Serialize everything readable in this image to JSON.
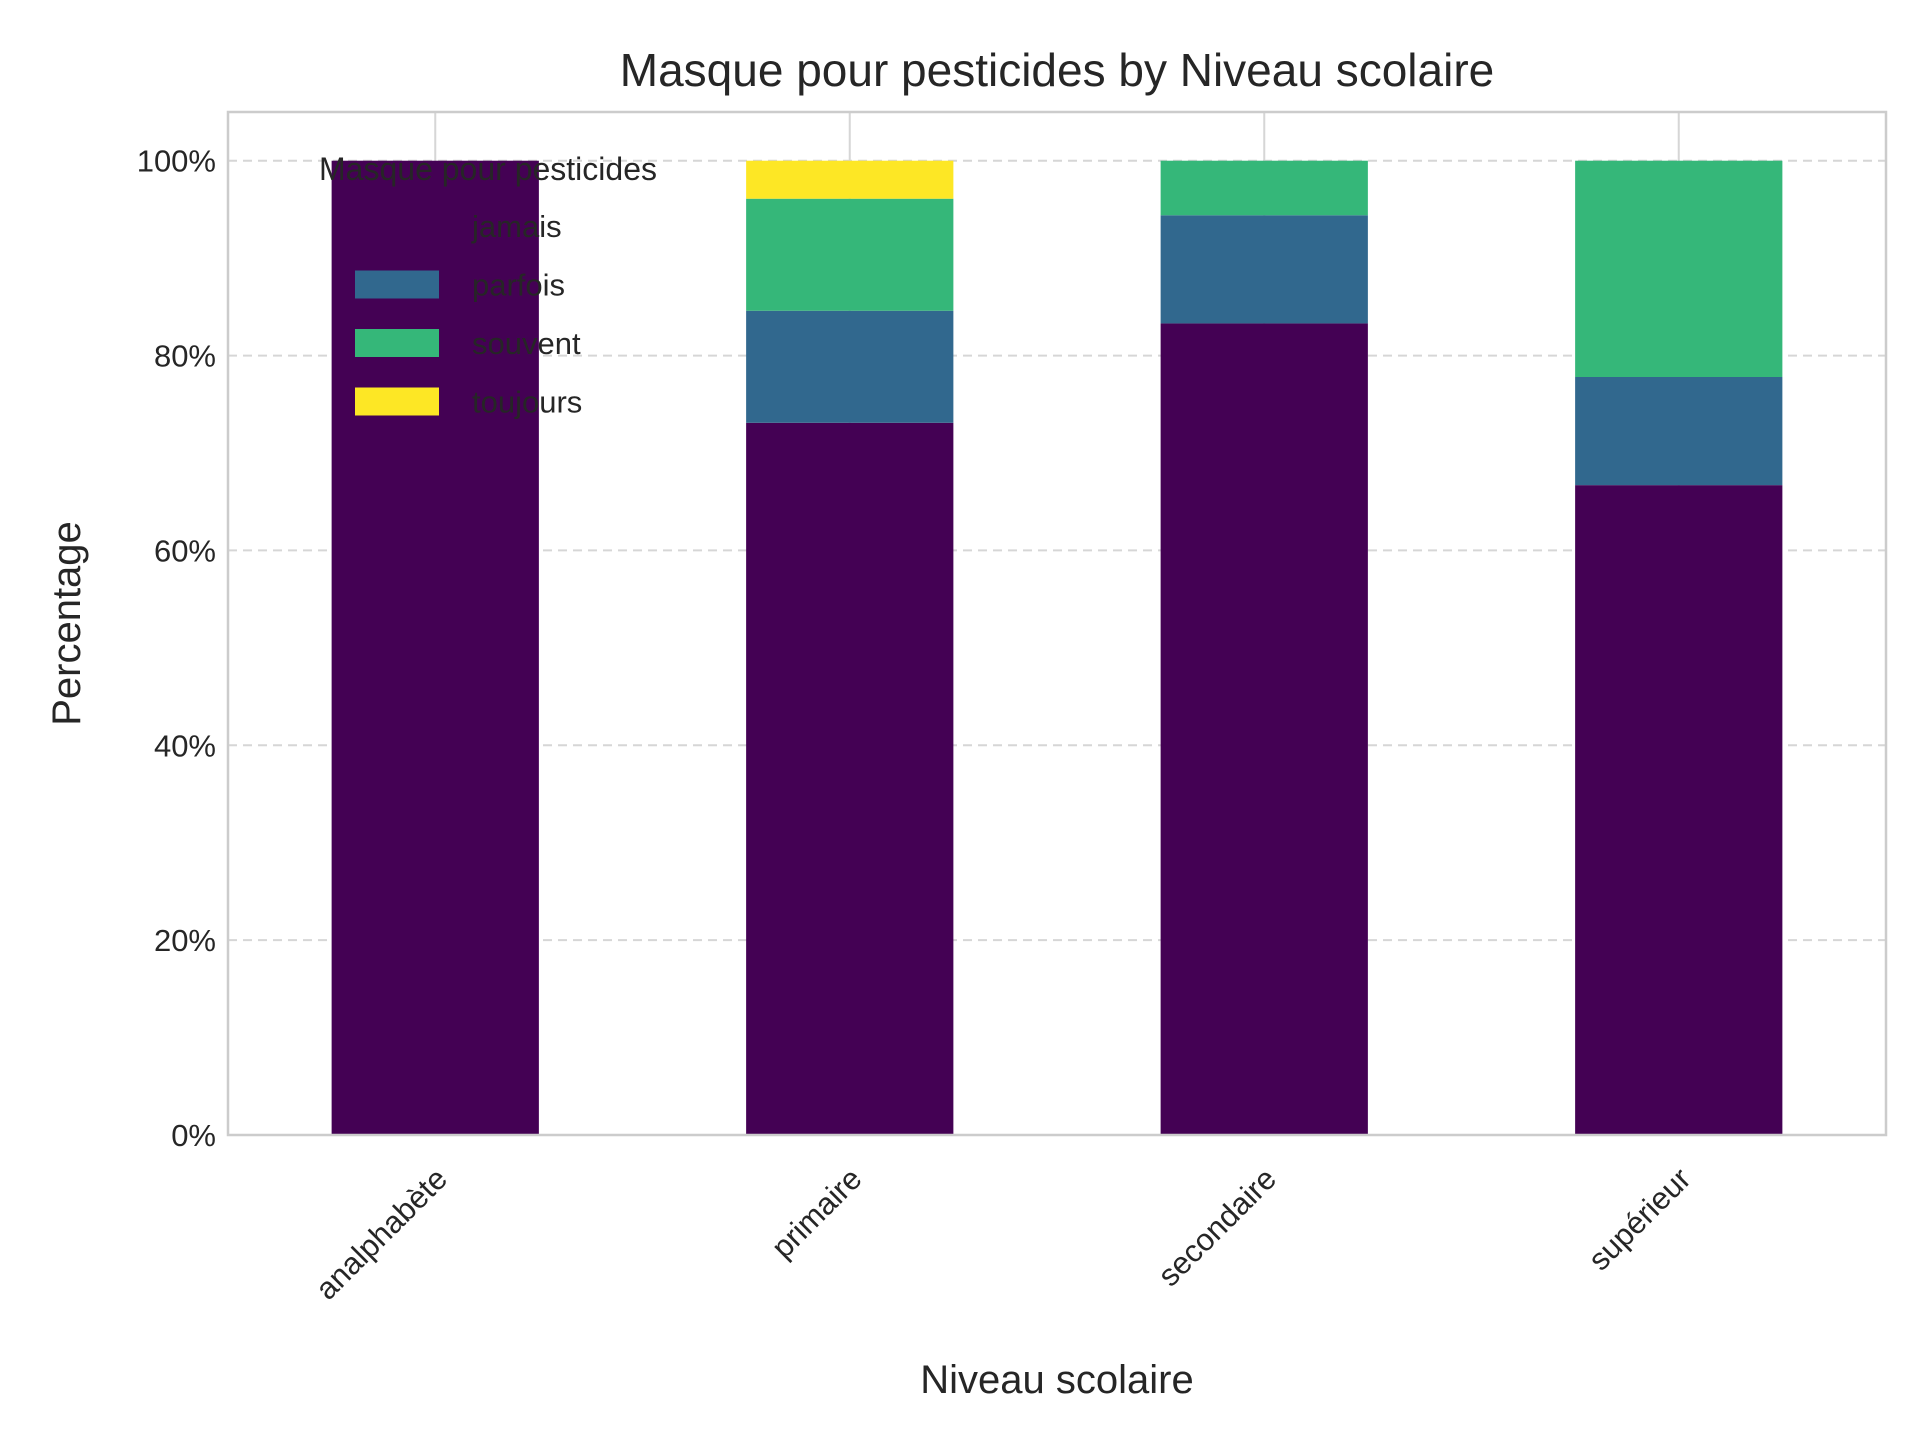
{
  "chart_data": {
    "type": "bar",
    "stacked": true,
    "title": "Masque pour pesticides by Niveau scolaire",
    "xlabel": "Niveau scolaire",
    "ylabel": "Percentage",
    "ylim": [
      0,
      105
    ],
    "yticks": [
      0,
      20,
      40,
      60,
      80,
      100
    ],
    "ytick_labels": [
      "0%",
      "20%",
      "40%",
      "60%",
      "80%",
      "100%"
    ],
    "grid": "y dashed, x solid",
    "categories": [
      "analphabète",
      "primaire",
      "secondaire",
      "supérieur"
    ],
    "legend": {
      "title": "Masque pour pesticides",
      "placement": "top-left"
    },
    "series": [
      {
        "name": "jamais",
        "color": "#440154",
        "values": [
          100,
          73.1,
          83.3,
          66.7
        ]
      },
      {
        "name": "parfois",
        "color": "#31688e",
        "values": [
          0,
          11.5,
          11.1,
          11.1
        ]
      },
      {
        "name": "souvent",
        "color": "#35b779",
        "values": [
          0,
          11.5,
          5.6,
          22.2
        ]
      },
      {
        "name": "toujours",
        "color": "#fde725",
        "values": [
          0,
          3.9,
          0,
          0
        ]
      }
    ]
  }
}
